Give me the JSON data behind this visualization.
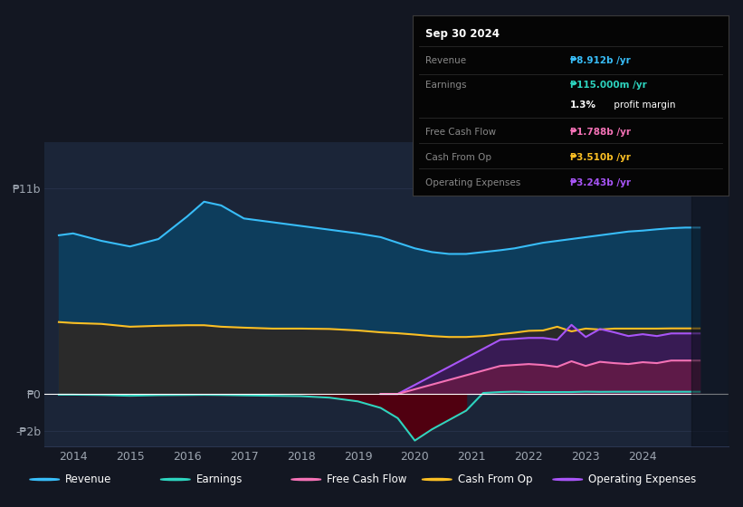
{
  "bg_color": "#131722",
  "plot_bg_color": "#1b2538",
  "text_color": "#9da5b0",
  "grid_color": "#2a3550",
  "tooltip_title": "Sep 30 2024",
  "ylim": [
    -2.8,
    13.5
  ],
  "xlim_start": 2013.5,
  "xlim_end": 2025.5,
  "x": [
    2013.75,
    2014.0,
    2014.5,
    2015.0,
    2015.5,
    2016.0,
    2016.3,
    2016.6,
    2017.0,
    2017.5,
    2018.0,
    2018.5,
    2019.0,
    2019.4,
    2019.7,
    2020.0,
    2020.3,
    2020.6,
    2020.9,
    2021.2,
    2021.5,
    2021.75,
    2022.0,
    2022.25,
    2022.5,
    2022.75,
    2023.0,
    2023.25,
    2023.5,
    2023.75,
    2024.0,
    2024.25,
    2024.5,
    2024.75,
    2025.0
  ],
  "revenue": [
    8.5,
    8.6,
    8.2,
    7.9,
    8.3,
    9.5,
    10.3,
    10.1,
    9.4,
    9.2,
    9.0,
    8.8,
    8.6,
    8.4,
    8.1,
    7.8,
    7.6,
    7.5,
    7.5,
    7.6,
    7.7,
    7.8,
    7.95,
    8.1,
    8.2,
    8.3,
    8.4,
    8.5,
    8.6,
    8.7,
    8.75,
    8.82,
    8.88,
    8.912,
    8.912
  ],
  "cash_from_op": [
    3.85,
    3.8,
    3.75,
    3.6,
    3.65,
    3.68,
    3.68,
    3.6,
    3.55,
    3.5,
    3.5,
    3.48,
    3.4,
    3.3,
    3.25,
    3.18,
    3.1,
    3.05,
    3.05,
    3.1,
    3.2,
    3.28,
    3.38,
    3.4,
    3.6,
    3.35,
    3.5,
    3.45,
    3.5,
    3.5,
    3.5,
    3.5,
    3.51,
    3.51,
    3.51
  ],
  "earnings": [
    -0.04,
    -0.04,
    -0.06,
    -0.1,
    -0.07,
    -0.06,
    -0.05,
    -0.06,
    -0.08,
    -0.1,
    -0.12,
    -0.2,
    -0.4,
    -0.75,
    -1.3,
    -2.5,
    -1.9,
    -1.4,
    -0.9,
    0.05,
    0.1,
    0.12,
    0.1,
    0.1,
    0.1,
    0.1,
    0.12,
    0.11,
    0.115,
    0.115,
    0.115,
    0.115,
    0.115,
    0.115,
    0.115
  ],
  "op_exp_x": [
    2019.4,
    2019.7,
    2021.5,
    2021.75,
    2022.0,
    2022.25,
    2022.5,
    2022.75,
    2023.0,
    2023.25,
    2023.5,
    2023.75,
    2024.0,
    2024.25,
    2024.5,
    2024.75,
    2025.0
  ],
  "op_exp_y": [
    0.0,
    0.0,
    2.9,
    2.95,
    3.0,
    3.0,
    2.9,
    3.7,
    3.05,
    3.48,
    3.3,
    3.1,
    3.2,
    3.1,
    3.24,
    3.24,
    3.24
  ],
  "fcf_x": [
    2019.4,
    2019.7,
    2021.5,
    2021.75,
    2022.0,
    2022.25,
    2022.5,
    2022.75,
    2023.0,
    2023.25,
    2023.5,
    2023.75,
    2024.0,
    2024.25,
    2024.5,
    2024.75,
    2025.0
  ],
  "fcf_y": [
    0.0,
    0.0,
    1.5,
    1.55,
    1.6,
    1.55,
    1.45,
    1.75,
    1.5,
    1.72,
    1.65,
    1.6,
    1.7,
    1.65,
    1.788,
    1.788,
    1.788
  ],
  "revenue_color": "#38bdf8",
  "revenue_fill": "#0d3d5c",
  "cash_op_color": "#fbbf24",
  "cash_op_fill": "#2a2a2a",
  "earnings_color": "#2dd4bf",
  "earnings_neg_fill": "#500010",
  "fcf_color": "#f472b6",
  "fcf_fill": "#6b1a45",
  "op_exp_color": "#a855f7",
  "op_exp_fill": "#3b1a5a",
  "tooltip_items": [
    {
      "label": "Revenue",
      "value": "₱8.912b /yr",
      "color": "#38bdf8"
    },
    {
      "label": "Earnings",
      "value": "₱115.000m /yr",
      "color": "#2dd4bf"
    },
    {
      "label": "",
      "value": "1.3% profit margin",
      "color": "#ffffff"
    },
    {
      "label": "Free Cash Flow",
      "value": "₱1.788b /yr",
      "color": "#f472b6"
    },
    {
      "label": "Cash From Op",
      "value": "₱3.510b /yr",
      "color": "#fbbf24"
    },
    {
      "label": "Operating Expenses",
      "value": "₱3.243b /yr",
      "color": "#a855f7"
    }
  ],
  "legend_items": [
    {
      "label": "Revenue",
      "color": "#38bdf8"
    },
    {
      "label": "Earnings",
      "color": "#2dd4bf"
    },
    {
      "label": "Free Cash Flow",
      "color": "#f472b6"
    },
    {
      "label": "Cash From Op",
      "color": "#fbbf24"
    },
    {
      "label": "Operating Expenses",
      "color": "#a855f7"
    }
  ],
  "xtick_years": [
    2014,
    2015,
    2016,
    2017,
    2018,
    2019,
    2020,
    2021,
    2022,
    2023,
    2024
  ]
}
